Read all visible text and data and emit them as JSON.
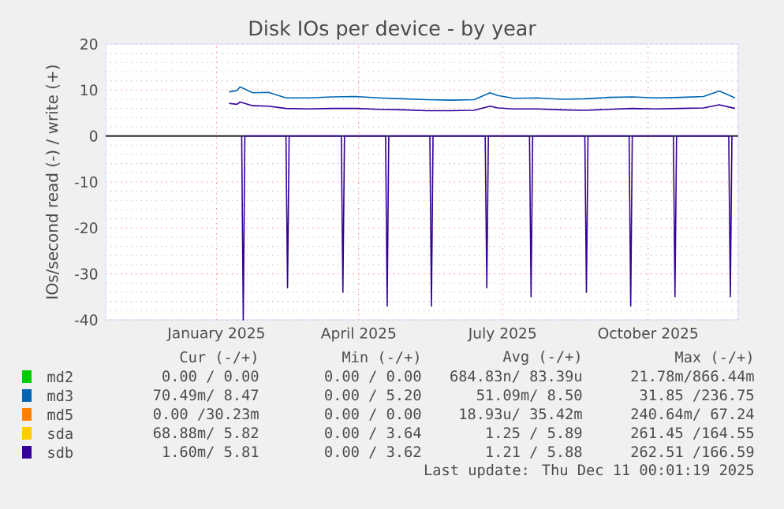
{
  "chart_data": {
    "type": "line",
    "title": "Disk IOs per device - by year",
    "ylabel": "IOs/second read (-) / write (+)",
    "xlim": [
      "2024-11-06",
      "2025-12-11"
    ],
    "xticks": [
      {
        "value": "2025-01-15",
        "label": "January 2025"
      },
      {
        "value": "2025-04-15",
        "label": "April 2025"
      },
      {
        "value": "2025-07-15",
        "label": "July 2025"
      },
      {
        "value": "2025-10-15",
        "label": "October 2025"
      }
    ],
    "ylim": [
      -40,
      20
    ],
    "yticks": [
      -40,
      -30,
      -20,
      -10,
      0,
      10,
      20
    ],
    "grid": true,
    "legend": "bottom",
    "marker": "none",
    "line_style": "solid",
    "x": [
      "2025-01-23",
      "2025-01-28",
      "2025-01-30",
      "2025-02-07",
      "2025-02-17",
      "2025-02-28",
      "2025-03-14",
      "2025-03-29",
      "2025-04-13",
      "2025-04-28",
      "2025-05-13",
      "2025-05-28",
      "2025-06-12",
      "2025-06-27",
      "2025-07-07",
      "2025-07-12",
      "2025-07-22",
      "2025-08-06",
      "2025-08-21",
      "2025-09-05",
      "2025-09-20",
      "2025-10-05",
      "2025-10-20",
      "2025-11-04",
      "2025-11-19",
      "2025-11-29",
      "2025-12-09"
    ],
    "series": [
      {
        "name": "md2",
        "color": "#00cc00",
        "values": [
          null,
          null,
          null,
          null,
          null,
          null,
          null,
          null,
          null,
          null,
          null,
          null,
          null,
          null,
          null,
          null,
          null,
          null,
          null,
          null,
          null,
          null,
          null,
          null,
          null,
          null,
          null
        ]
      },
      {
        "name": "md3",
        "color": "#0066b3",
        "values": [
          9.6,
          9.9,
          10.7,
          9.4,
          9.5,
          8.3,
          8.3,
          8.5,
          8.6,
          8.3,
          8.1,
          7.9,
          7.8,
          7.9,
          9.4,
          8.8,
          8.2,
          8.3,
          8.0,
          8.1,
          8.4,
          8.5,
          8.3,
          8.4,
          8.6,
          9.8,
          8.3
        ]
      },
      {
        "name": "md5",
        "color": "#ff8000",
        "values": [
          null,
          null,
          null,
          null,
          null,
          null,
          null,
          null,
          null,
          null,
          null,
          null,
          null,
          null,
          null,
          null,
          null,
          null,
          null,
          null,
          null,
          null,
          null,
          null,
          null,
          null,
          null
        ]
      },
      {
        "name": "sda",
        "color": "#ffcc00",
        "values": [
          null,
          null,
          null,
          null,
          null,
          null,
          null,
          null,
          null,
          null,
          null,
          null,
          null,
          null,
          null,
          null,
          null,
          null,
          null,
          null,
          null,
          null,
          null,
          null,
          null,
          null,
          null
        ]
      },
      {
        "name": "sdb",
        "color": "#330099",
        "values": [
          7.1,
          6.9,
          7.4,
          6.6,
          6.5,
          6.0,
          5.9,
          6.0,
          6.0,
          5.8,
          5.7,
          5.5,
          5.5,
          5.6,
          6.5,
          6.1,
          5.9,
          5.9,
          5.7,
          5.6,
          5.8,
          6.0,
          5.9,
          6.0,
          6.1,
          6.8,
          6.0
        ]
      },
      {
        "color": "#330099",
        "x": [
          "2025-01-31",
          "2025-02-01",
          "2025-02-02",
          "2025-02-28",
          "2025-03-01",
          "2025-03-02",
          "2025-04-04",
          "2025-04-05",
          "2025-04-06",
          "2025-05-02",
          "2025-05-03",
          "2025-05-04",
          "2025-05-30",
          "2025-05-31",
          "2025-06-01",
          "2025-07-04",
          "2025-07-05",
          "2025-07-06",
          "2025-08-01",
          "2025-08-02",
          "2025-08-03",
          "2025-09-05",
          "2025-09-06",
          "2025-09-07",
          "2025-10-03",
          "2025-10-04",
          "2025-10-05",
          "2025-10-31",
          "2025-11-01",
          "2025-11-02",
          "2025-12-05",
          "2025-12-06",
          "2025-12-07"
        ],
        "values": [
          0,
          -40,
          0,
          0,
          -33,
          0,
          0,
          -34,
          0,
          0,
          -37,
          0,
          0,
          -37,
          0,
          0,
          -33,
          0,
          0,
          -35,
          0,
          0,
          -34,
          0,
          0,
          -37,
          0,
          0,
          -35,
          0,
          0,
          -35,
          0
        ]
      }
    ],
    "annotations": [
      "Cur (-/+)",
      "Min (-/+)",
      "Avg (-/+)",
      "Max (-/+)",
      "0.00 /  0.00",
      "0.00 /  0.00",
      "684.83n/ 83.39u",
      "21.78m/866.44m",
      "70.49m/  8.47",
      "0.00 /  5.20",
      "51.09m/  8.50",
      "31.85 /236.75",
      "0.00 /30.23m",
      "0.00 /  0.00",
      "18.93u/ 35.42m",
      "240.64m/ 67.24",
      "68.88m/  5.82",
      "0.00 /  3.64",
      "1.25 /  5.89",
      "261.45 /164.55",
      "1.60m/  5.81",
      "0.00 /  3.62",
      "1.21 /  5.88",
      "262.51 /166.59",
      "Last update: Thu Dec 11 00:01:19 2025"
    ]
  }
}
